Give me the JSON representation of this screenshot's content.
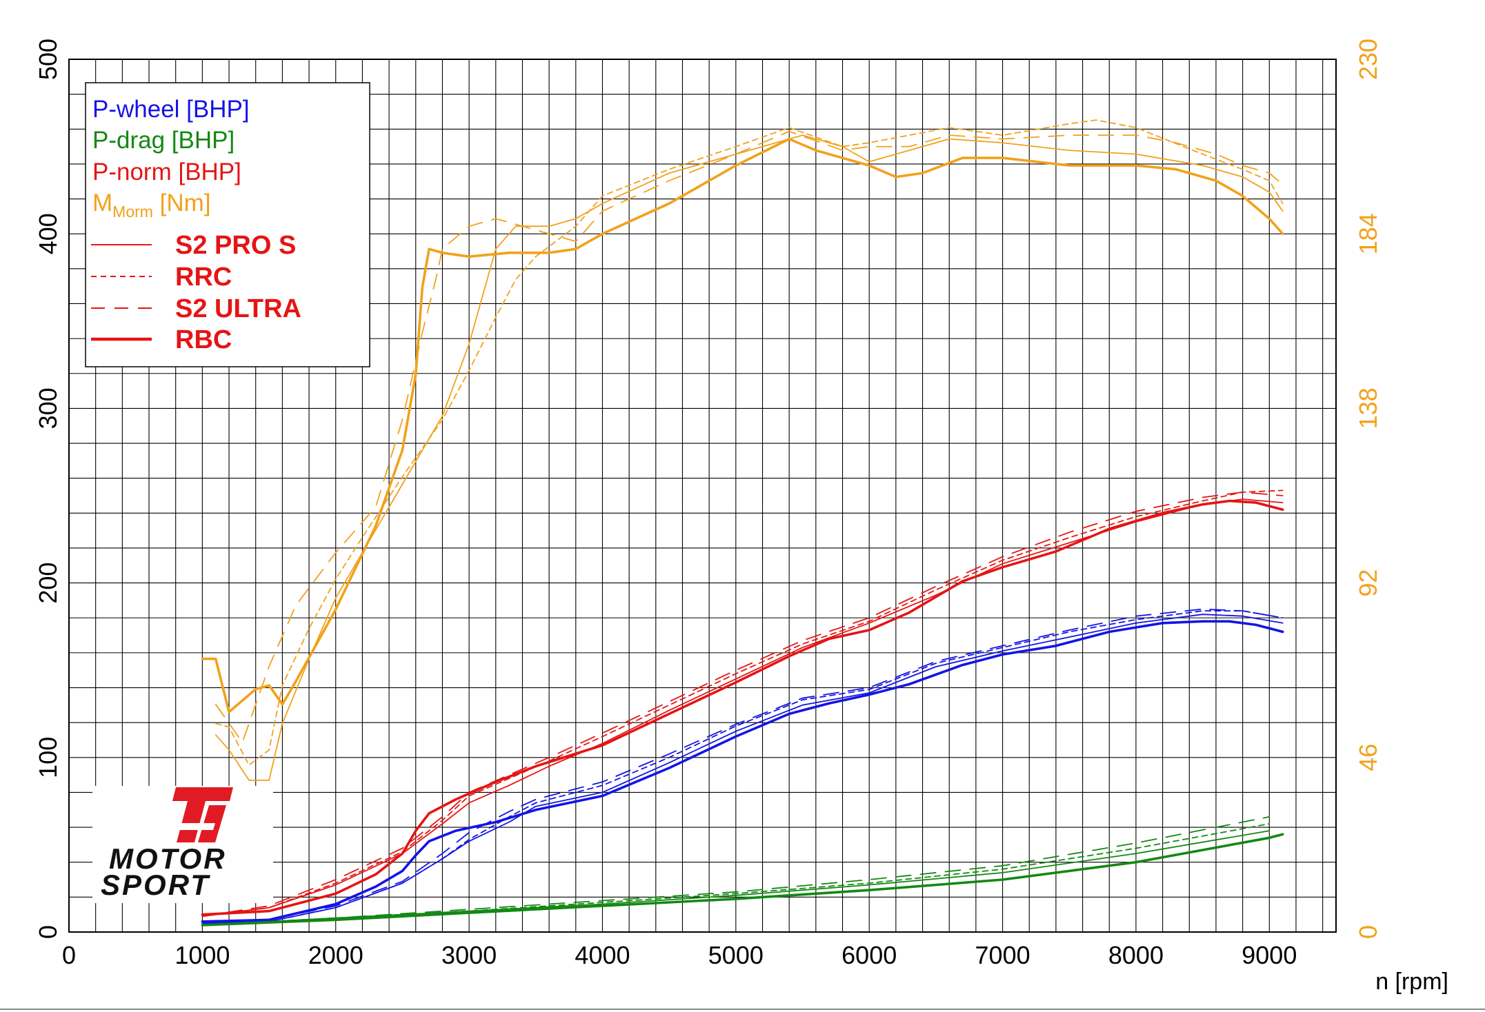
{
  "chart_data": {
    "type": "line",
    "title": "",
    "xlabel": "n [rpm]",
    "ylabel": "",
    "y2label": "",
    "xlim": [
      0,
      9500
    ],
    "ylim": [
      0,
      500
    ],
    "y2lim": [
      0,
      230
    ],
    "x_ticks": [
      0,
      1000,
      2000,
      3000,
      4000,
      5000,
      6000,
      7000,
      8000,
      9000
    ],
    "y_ticks": [
      0,
      100,
      200,
      300,
      400,
      500
    ],
    "y2_ticks": [
      0,
      46,
      92,
      138,
      184,
      230
    ],
    "grid": true,
    "legend_position": "top-left",
    "legend": {
      "quantities": [
        {
          "text": "P-wheel [BHP]",
          "color": "#1414e6"
        },
        {
          "text": "P-drag [BHP]",
          "color": "#138813"
        },
        {
          "text": "P-norm [BHP]",
          "color": "#e61414"
        },
        {
          "text": "M",
          "sub": "Morm",
          "unit": " [Nm]",
          "color": "#f2a11a"
        }
      ],
      "runs": [
        {
          "name": "S2 PRO S",
          "style": "thin-solid"
        },
        {
          "name": "RRC",
          "style": "short-dash"
        },
        {
          "name": "S2 ULTRA",
          "style": "long-dash"
        },
        {
          "name": "RBC",
          "style": "thick-solid"
        }
      ]
    },
    "colors": {
      "p_wheel": "#1414e6",
      "p_drag": "#138813",
      "p_norm": "#e61414",
      "m_norm": "#f2a11a"
    },
    "series": [
      {
        "quantity": "P-norm",
        "run": "RBC",
        "axis": "left",
        "x": [
          1000,
          1500,
          2000,
          2300,
          2500,
          2600,
          2700,
          2900,
          3200,
          3500,
          4000,
          4500,
          5000,
          5400,
          5700,
          6000,
          6300,
          6700,
          7000,
          7400,
          7800,
          8200,
          8500,
          8700,
          8900,
          9100
        ],
        "y": [
          10,
          12,
          22,
          33,
          45,
          58,
          68,
          76,
          86,
          95,
          107,
          125,
          143,
          158,
          168,
          173,
          183,
          201,
          209,
          218,
          231,
          240,
          245,
          247,
          246,
          242
        ]
      },
      {
        "quantity": "P-norm",
        "run": "S2 PRO S",
        "axis": "left",
        "x": [
          1000,
          1500,
          2000,
          2500,
          2800,
          3000,
          3300,
          3600,
          4000,
          4500,
          5000,
          5500,
          6000,
          6500,
          7000,
          7500,
          8000,
          8500,
          8800,
          9100
        ],
        "y": [
          9,
          14,
          27,
          45,
          62,
          74,
          84,
          95,
          108,
          127,
          145,
          163,
          177,
          193,
          211,
          223,
          235,
          245,
          248,
          246
        ]
      },
      {
        "quantity": "P-norm",
        "run": "RRC",
        "axis": "left",
        "x": [
          1000,
          1500,
          2000,
          2500,
          2800,
          3000,
          3300,
          3600,
          4000,
          4500,
          5000,
          5500,
          6000,
          6500,
          7000,
          7500,
          8000,
          8500,
          8800,
          9100
        ],
        "y": [
          9,
          14,
          28,
          46,
          64,
          78,
          88,
          98,
          112,
          130,
          148,
          165,
          178,
          196,
          213,
          226,
          238,
          247,
          252,
          253
        ]
      },
      {
        "quantity": "P-norm",
        "run": "S2 ULTRA",
        "axis": "left",
        "x": [
          1000,
          1500,
          2000,
          2500,
          2800,
          3000,
          3300,
          3600,
          4000,
          4500,
          5000,
          5500,
          6000,
          6500,
          7000,
          7500,
          8000,
          8500,
          8800,
          9100
        ],
        "y": [
          9,
          15,
          30,
          48,
          66,
          80,
          90,
          100,
          114,
          132,
          150,
          167,
          180,
          198,
          215,
          229,
          241,
          249,
          252,
          250
        ]
      },
      {
        "quantity": "P-wheel",
        "run": "RBC",
        "axis": "left",
        "x": [
          1000,
          1500,
          2000,
          2300,
          2500,
          2600,
          2700,
          2900,
          3200,
          3500,
          4000,
          4500,
          5000,
          5400,
          5700,
          6000,
          6300,
          6700,
          7000,
          7400,
          7800,
          8200,
          8500,
          8700,
          8900,
          9100
        ],
        "y": [
          6,
          7,
          16,
          26,
          35,
          44,
          52,
          58,
          63,
          70,
          78,
          94,
          112,
          125,
          131,
          136,
          142,
          153,
          159,
          164,
          172,
          177,
          178,
          178,
          176,
          172
        ]
      },
      {
        "quantity": "P-wheel",
        "run": "S2 PRO S",
        "axis": "left",
        "x": [
          1000,
          1500,
          2000,
          2500,
          2800,
          3000,
          3300,
          3500,
          4000,
          4500,
          5000,
          5500,
          6000,
          6500,
          7000,
          7500,
          8000,
          8500,
          8800,
          9100
        ],
        "y": [
          5,
          6,
          14,
          28,
          42,
          52,
          63,
          72,
          80,
          97,
          115,
          130,
          137,
          152,
          161,
          169,
          177,
          182,
          181,
          177
        ]
      },
      {
        "quantity": "P-wheel",
        "run": "RRC",
        "axis": "left",
        "x": [
          1000,
          1500,
          2000,
          2500,
          2800,
          3000,
          3300,
          3500,
          4000,
          4500,
          5000,
          5500,
          6000,
          6500,
          7000,
          7500,
          8000,
          8500,
          8800,
          9100
        ],
        "y": [
          5,
          6,
          14,
          28,
          42,
          53,
          66,
          74,
          84,
          100,
          118,
          133,
          139,
          154,
          163,
          172,
          179,
          184,
          184,
          180
        ]
      },
      {
        "quantity": "P-wheel",
        "run": "S2 ULTRA",
        "axis": "left",
        "x": [
          1000,
          1500,
          2000,
          2500,
          2800,
          3000,
          3300,
          3500,
          4000,
          4500,
          5000,
          5500,
          6000,
          6500,
          7000,
          7500,
          8000,
          8500,
          8800,
          9100
        ],
        "y": [
          5,
          7,
          15,
          29,
          45,
          57,
          69,
          76,
          86,
          102,
          119,
          134,
          140,
          155,
          164,
          173,
          181,
          185,
          184,
          180
        ]
      },
      {
        "quantity": "P-drag",
        "run": "RBC",
        "axis": "left",
        "x": [
          1000,
          2000,
          3000,
          4000,
          5000,
          6000,
          7000,
          8000,
          9000,
          9100
        ],
        "y": [
          4,
          7,
          11,
          15,
          19,
          24,
          30,
          40,
          54,
          56
        ]
      },
      {
        "quantity": "P-drag",
        "run": "S2 PRO S",
        "axis": "left",
        "x": [
          1000,
          2000,
          3000,
          4000,
          5000,
          6000,
          7000,
          8000,
          9000
        ],
        "y": [
          4,
          8,
          12,
          16,
          21,
          27,
          34,
          45,
          58
        ]
      },
      {
        "quantity": "P-drag",
        "run": "RRC",
        "axis": "left",
        "x": [
          1000,
          2000,
          3000,
          4000,
          5000,
          6000,
          7000,
          8000,
          9000
        ],
        "y": [
          4,
          8,
          12,
          17,
          22,
          28,
          36,
          48,
          62
        ]
      },
      {
        "quantity": "P-drag",
        "run": "S2 ULTRA",
        "axis": "left",
        "x": [
          1000,
          2000,
          3000,
          4000,
          5000,
          6000,
          7000,
          8000,
          9000
        ],
        "y": [
          4,
          8,
          13,
          18,
          23,
          30,
          38,
          51,
          66
        ]
      },
      {
        "quantity": "M-norm",
        "run": "RBC",
        "axis": "right",
        "x": [
          1000,
          1100,
          1200,
          1400,
          1500,
          1600,
          1700,
          2000,
          2300,
          2500,
          2600,
          2650,
          2700,
          2800,
          3000,
          3300,
          3600,
          3800,
          4000,
          4500,
          5000,
          5400,
          5600,
          5800,
          6000,
          6200,
          6400,
          6700,
          7000,
          7500,
          8000,
          8300,
          8600,
          8800,
          9000,
          9100
        ],
        "y": [
          72,
          72,
          58,
          64,
          65,
          60,
          66,
          85,
          107,
          127,
          147,
          170,
          180,
          179,
          178,
          179,
          179,
          180,
          184,
          192,
          202,
          209,
          206,
          204,
          202,
          199,
          200,
          204,
          204,
          202,
          202,
          201,
          198,
          194,
          188,
          184
        ]
      },
      {
        "quantity": "M-norm",
        "run": "S2 PRO S",
        "axis": "right",
        "x": [
          1100,
          1200,
          1350,
          1500,
          1600,
          1800,
          2000,
          2200,
          2500,
          2800,
          3000,
          3200,
          3350,
          3600,
          3800,
          4000,
          4500,
          5000,
          5500,
          5800,
          6000,
          6300,
          6600,
          7000,
          7500,
          8000,
          8500,
          8800,
          9000,
          9100
        ],
        "y": [
          52,
          48,
          40,
          40,
          55,
          72,
          88,
          100,
          118,
          136,
          155,
          180,
          186,
          186,
          188,
          192,
          200,
          205,
          210,
          207,
          203,
          206,
          209,
          208,
          206,
          205,
          202,
          199,
          195,
          190
        ]
      },
      {
        "quantity": "M-norm",
        "run": "RRC",
        "axis": "right",
        "x": [
          1100,
          1200,
          1350,
          1500,
          1600,
          1800,
          2000,
          2200,
          2500,
          2800,
          3000,
          3200,
          3350,
          3500,
          3800,
          4000,
          4500,
          5000,
          5400,
          5800,
          6000,
          6300,
          6600,
          7000,
          7500,
          7700,
          8000,
          8500,
          8800,
          9000,
          9100
        ],
        "y": [
          55,
          54,
          44,
          48,
          65,
          80,
          93,
          104,
          120,
          135,
          148,
          162,
          172,
          178,
          186,
          194,
          201,
          207,
          212,
          207,
          208,
          210,
          212,
          210,
          213,
          214,
          212,
          205,
          201,
          198,
          192
        ]
      },
      {
        "quantity": "M-norm",
        "run": "S2 ULTRA",
        "axis": "right",
        "x": [
          1100,
          1300,
          1500,
          1700,
          2000,
          2300,
          2500,
          2650,
          2750,
          2800,
          3000,
          3200,
          3500,
          3800,
          4000,
          4500,
          5000,
          5400,
          5800,
          6000,
          6300,
          6600,
          7000,
          7500,
          8000,
          8300,
          8600,
          8800,
          9000,
          9100
        ],
        "y": [
          60,
          50,
          70,
          86,
          100,
          112,
          135,
          158,
          172,
          180,
          186,
          188,
          185,
          182,
          190,
          198,
          205,
          211,
          206,
          207,
          207,
          210,
          209,
          210,
          210,
          208,
          205,
          202,
          200,
          197
        ]
      }
    ]
  }
}
